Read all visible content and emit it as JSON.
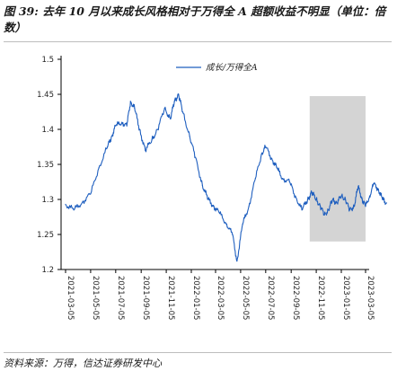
{
  "header": {
    "title": "图 39: 去年 10 月以来成长风格相对于万得全 A 超额收益不明显（单位：倍数）"
  },
  "footer": {
    "source": "资料来源：万得，信达证券研发中心"
  },
  "colors": {
    "line": "#1f5fbf",
    "highlight_band": "#d4d4d4",
    "axis": "#000000"
  },
  "chart_data": {
    "type": "line",
    "title": "",
    "xlabel": "",
    "ylabel": "",
    "ylim": [
      1.2,
      1.5
    ],
    "yticks": [
      "1.2",
      "1.25",
      "1.3",
      "1.35",
      "1.4",
      "1.45",
      "1.5"
    ],
    "xticks": [
      "2021-03-05",
      "2021-05-05",
      "2021-07-05",
      "2021-09-05",
      "2021-11-05",
      "2022-01-05",
      "2022-03-05",
      "2022-05-05",
      "2022-07-05",
      "2022-09-05",
      "2022-11-05",
      "2023-01-05",
      "2023-03-05"
    ],
    "grid": false,
    "legend_position": "top-center",
    "highlight_band": {
      "from": "2022-10-20",
      "to": "2023-04-30"
    },
    "series": [
      {
        "name": "成长/万得全A",
        "points": [
          [
            "2021-03-05",
            1.293
          ],
          [
            "2021-03-25",
            1.285
          ],
          [
            "2021-04-15",
            1.296
          ],
          [
            "2021-05-05",
            1.308
          ],
          [
            "2021-05-25",
            1.345
          ],
          [
            "2021-06-15",
            1.375
          ],
          [
            "2021-06-25",
            1.39
          ],
          [
            "2021-07-05",
            1.405
          ],
          [
            "2021-07-20",
            1.41
          ],
          [
            "2021-08-01",
            1.405
          ],
          [
            "2021-08-10",
            1.44
          ],
          [
            "2021-08-20",
            1.43
          ],
          [
            "2021-09-01",
            1.4
          ],
          [
            "2021-09-15",
            1.37
          ],
          [
            "2021-10-01",
            1.385
          ],
          [
            "2021-10-15",
            1.4
          ],
          [
            "2021-11-01",
            1.43
          ],
          [
            "2021-11-15",
            1.415
          ],
          [
            "2021-11-25",
            1.44
          ],
          [
            "2021-12-05",
            1.45
          ],
          [
            "2021-12-15",
            1.425
          ],
          [
            "2022-01-01",
            1.39
          ],
          [
            "2022-01-15",
            1.36
          ],
          [
            "2022-02-01",
            1.32
          ],
          [
            "2022-02-15",
            1.3
          ],
          [
            "2022-03-01",
            1.29
          ],
          [
            "2022-03-15",
            1.28
          ],
          [
            "2022-04-01",
            1.265
          ],
          [
            "2022-04-15",
            1.25
          ],
          [
            "2022-04-26",
            1.212
          ],
          [
            "2022-05-10",
            1.265
          ],
          [
            "2022-05-25",
            1.29
          ],
          [
            "2022-06-10",
            1.33
          ],
          [
            "2022-06-25",
            1.365
          ],
          [
            "2022-07-05",
            1.375
          ],
          [
            "2022-07-20",
            1.358
          ],
          [
            "2022-08-01",
            1.345
          ],
          [
            "2022-08-15",
            1.33
          ],
          [
            "2022-09-01",
            1.325
          ],
          [
            "2022-09-15",
            1.305
          ],
          [
            "2022-10-01",
            1.285
          ],
          [
            "2022-10-15",
            1.3
          ],
          [
            "2022-10-25",
            1.31
          ],
          [
            "2022-11-05",
            1.3
          ],
          [
            "2022-11-15",
            1.29
          ],
          [
            "2022-11-25",
            1.278
          ],
          [
            "2022-12-05",
            1.285
          ],
          [
            "2022-12-15",
            1.3
          ],
          [
            "2022-12-25",
            1.295
          ],
          [
            "2023-01-05",
            1.305
          ],
          [
            "2023-01-15",
            1.3
          ],
          [
            "2023-01-25",
            1.285
          ],
          [
            "2023-02-05",
            1.29
          ],
          [
            "2023-02-15",
            1.318
          ],
          [
            "2023-02-25",
            1.3
          ],
          [
            "2023-03-05",
            1.29
          ],
          [
            "2023-03-15",
            1.305
          ],
          [
            "2023-03-25",
            1.322
          ],
          [
            "2023-04-05",
            1.315
          ],
          [
            "2023-04-15",
            1.3
          ],
          [
            "2023-04-25",
            1.295
          ]
        ]
      }
    ]
  }
}
